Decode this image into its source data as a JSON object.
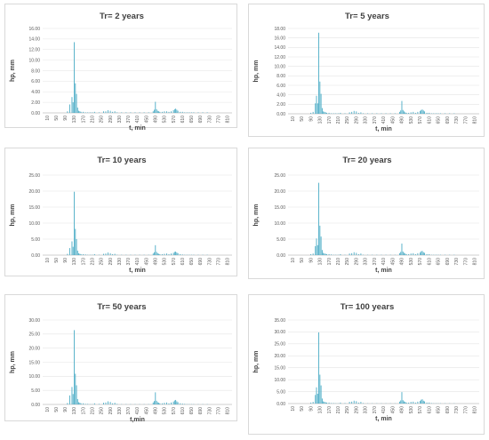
{
  "colors": {
    "bar": "#4bacc6",
    "grid": "#e4e4e4",
    "text": "#595959",
    "title": "#404040"
  },
  "chart_data": [
    {
      "type": "bar",
      "title": "Tr= 2 years",
      "xlabel": "t, min",
      "ylabel": "hp, mm",
      "ylim": [
        0,
        16
      ],
      "ytick_labels": [
        "0.00",
        "2.00",
        "4.00",
        "6.00",
        "8.00",
        "10.00",
        "12.00",
        "14.00",
        "16.00"
      ],
      "xtick_labels": [
        "10",
        "50",
        "90",
        "130",
        "170",
        "210",
        "250",
        "290",
        "330",
        "370",
        "410",
        "450",
        "490",
        "530",
        "570",
        "610",
        "650",
        "690",
        "730",
        "770",
        "810"
      ],
      "x": [
        100,
        110,
        120,
        125,
        130,
        135,
        140,
        145,
        150,
        155,
        160,
        170,
        180,
        190,
        200,
        210,
        220,
        240,
        260,
        270,
        280,
        290,
        300,
        310,
        320,
        340,
        360,
        380,
        400,
        420,
        440,
        460,
        480,
        485,
        490,
        495,
        500,
        505,
        510,
        520,
        530,
        540,
        550,
        560,
        570,
        575,
        580,
        585,
        590,
        600,
        610,
        620,
        630,
        640,
        650,
        660,
        680,
        700,
        720
      ],
      "values": [
        0.3,
        1.6,
        3.0,
        2.0,
        13.4,
        5.6,
        3.6,
        1.0,
        0.4,
        0.3,
        0.2,
        0.2,
        0.1,
        0.1,
        0.1,
        0.1,
        0.2,
        0.1,
        0.3,
        0.3,
        0.5,
        0.4,
        0.2,
        0.3,
        0.1,
        0.1,
        0.1,
        0.1,
        0.1,
        0.1,
        0.1,
        0.1,
        0.3,
        0.6,
        2.1,
        0.7,
        0.4,
        0.3,
        0.2,
        0.2,
        0.3,
        0.3,
        0.2,
        0.3,
        0.5,
        0.7,
        0.8,
        0.6,
        0.4,
        0.2,
        0.2,
        0.1,
        0.1,
        0.1,
        0.1,
        0.1,
        0.1,
        0.1,
        0.1
      ]
    },
    {
      "type": "bar",
      "title": "Tr= 5 years",
      "xlabel": "t, min",
      "ylabel": "hp, mm",
      "ylim": [
        0,
        18
      ],
      "ytick_labels": [
        "0.00",
        "2.00",
        "4.00",
        "6.00",
        "8.00",
        "10.00",
        "12.00",
        "14.00",
        "16.00",
        "18.00"
      ],
      "xtick_labels": [
        "10",
        "50",
        "90",
        "130",
        "170",
        "210",
        "250",
        "290",
        "330",
        "370",
        "410",
        "450",
        "490",
        "530",
        "570",
        "610",
        "650",
        "690",
        "730",
        "770",
        "810"
      ],
      "x": [
        90,
        100,
        110,
        115,
        120,
        125,
        130,
        135,
        140,
        145,
        150,
        155,
        160,
        170,
        180,
        190,
        200,
        210,
        220,
        240,
        260,
        270,
        280,
        290,
        300,
        310,
        320,
        340,
        360,
        380,
        400,
        420,
        440,
        460,
        480,
        485,
        490,
        495,
        500,
        505,
        510,
        520,
        530,
        540,
        550,
        560,
        570,
        575,
        580,
        585,
        590,
        600,
        610,
        620,
        630,
        640,
        650,
        660,
        680,
        700,
        720
      ],
      "values": [
        0.2,
        0.4,
        2.2,
        3.8,
        2.2,
        17.1,
        6.8,
        4.2,
        1.2,
        0.5,
        0.4,
        0.3,
        0.2,
        0.2,
        0.1,
        0.1,
        0.1,
        0.1,
        0.2,
        0.1,
        0.3,
        0.4,
        0.6,
        0.5,
        0.2,
        0.3,
        0.1,
        0.1,
        0.1,
        0.1,
        0.1,
        0.1,
        0.1,
        0.1,
        0.4,
        0.7,
        2.7,
        0.8,
        0.5,
        0.3,
        0.2,
        0.2,
        0.3,
        0.4,
        0.2,
        0.4,
        0.6,
        0.8,
        0.9,
        0.7,
        0.5,
        0.2,
        0.2,
        0.1,
        0.1,
        0.1,
        0.1,
        0.1,
        0.1,
        0.1,
        0.1
      ]
    },
    {
      "type": "bar",
      "title": "Tr= 10 years",
      "xlabel": "t, min",
      "ylabel": "hp, mm",
      "ylim": [
        0,
        25
      ],
      "ytick_labels": [
        "0.00",
        "5.00",
        "10.00",
        "15.00",
        "20.00",
        "25.00"
      ],
      "xtick_labels": [
        "10",
        "50",
        "90",
        "130",
        "170",
        "210",
        "250",
        "290",
        "330",
        "370",
        "410",
        "450",
        "490",
        "530",
        "570",
        "610",
        "650",
        "690",
        "730",
        "770",
        "810"
      ],
      "x": [
        100,
        110,
        120,
        125,
        130,
        135,
        140,
        145,
        150,
        155,
        160,
        170,
        180,
        190,
        200,
        210,
        220,
        240,
        260,
        270,
        280,
        290,
        300,
        310,
        320,
        340,
        360,
        380,
        400,
        420,
        440,
        460,
        480,
        485,
        490,
        495,
        500,
        505,
        510,
        520,
        530,
        540,
        550,
        560,
        570,
        575,
        580,
        585,
        590,
        600,
        610,
        620,
        630,
        640,
        650,
        660,
        680,
        700,
        720
      ],
      "values": [
        0.4,
        2.2,
        4.3,
        2.6,
        19.8,
        8.2,
        5.0,
        1.4,
        0.6,
        0.4,
        0.3,
        0.3,
        0.2,
        0.1,
        0.1,
        0.1,
        0.3,
        0.1,
        0.4,
        0.5,
        0.8,
        0.6,
        0.3,
        0.4,
        0.1,
        0.1,
        0.1,
        0.1,
        0.1,
        0.1,
        0.1,
        0.1,
        0.5,
        0.9,
        3.1,
        1.0,
        0.6,
        0.4,
        0.3,
        0.3,
        0.4,
        0.5,
        0.3,
        0.5,
        0.7,
        1.0,
        1.1,
        0.8,
        0.6,
        0.3,
        0.2,
        0.1,
        0.1,
        0.1,
        0.1,
        0.1,
        0.1,
        0.1,
        0.1
      ]
    },
    {
      "type": "bar",
      "title": "Tr= 20 years",
      "xlabel": "t, min",
      "ylabel": "hp, mm",
      "ylim": [
        0,
        25
      ],
      "ytick_labels": [
        "0.00",
        "5.00",
        "10.00",
        "15.00",
        "20.00",
        "25.00"
      ],
      "xtick_labels": [
        "10",
        "50",
        "90",
        "130",
        "170",
        "210",
        "250",
        "290",
        "330",
        "370",
        "410",
        "450",
        "490",
        "530",
        "570",
        "610",
        "650",
        "690",
        "730",
        "770",
        "810"
      ],
      "x": [
        90,
        100,
        110,
        115,
        120,
        125,
        130,
        135,
        140,
        145,
        150,
        155,
        160,
        170,
        180,
        190,
        200,
        210,
        220,
        240,
        260,
        270,
        280,
        290,
        300,
        310,
        320,
        340,
        360,
        380,
        400,
        420,
        440,
        460,
        480,
        485,
        490,
        495,
        500,
        505,
        510,
        520,
        530,
        540,
        550,
        560,
        570,
        575,
        580,
        585,
        590,
        600,
        610,
        620,
        630,
        640,
        650,
        660,
        680,
        700,
        720
      ],
      "values": [
        0.3,
        0.5,
        2.8,
        5.2,
        3.1,
        22.6,
        9.2,
        5.8,
        1.6,
        0.7,
        0.5,
        0.4,
        0.3,
        0.3,
        0.2,
        0.1,
        0.1,
        0.1,
        0.3,
        0.1,
        0.5,
        0.6,
        0.9,
        0.7,
        0.3,
        0.5,
        0.1,
        0.1,
        0.1,
        0.1,
        0.1,
        0.1,
        0.1,
        0.1,
        0.6,
        1.0,
        3.6,
        1.1,
        0.7,
        0.5,
        0.3,
        0.3,
        0.5,
        0.6,
        0.3,
        0.6,
        0.8,
        1.2,
        1.3,
        0.9,
        0.7,
        0.3,
        0.3,
        0.1,
        0.1,
        0.1,
        0.1,
        0.1,
        0.1,
        0.1,
        0.1
      ]
    },
    {
      "type": "bar",
      "title": "Tr= 50  years",
      "xlabel": "t,min",
      "ylabel": "hp, mm",
      "ylim": [
        0,
        30
      ],
      "ytick_labels": [
        "0.00",
        "5.00",
        "10.00",
        "15.00",
        "20.00",
        "25.00",
        "30.00"
      ],
      "xtick_labels": [
        "10",
        "50",
        "90",
        "130",
        "170",
        "210",
        "250",
        "290",
        "330",
        "370",
        "410",
        "450",
        "490",
        "530",
        "570",
        "610",
        "650",
        "690",
        "730",
        "770",
        "810"
      ],
      "x": [
        100,
        110,
        120,
        125,
        130,
        135,
        140,
        145,
        150,
        155,
        160,
        170,
        180,
        190,
        200,
        210,
        220,
        240,
        260,
        270,
        280,
        290,
        300,
        310,
        320,
        340,
        360,
        380,
        400,
        420,
        440,
        460,
        480,
        485,
        490,
        495,
        500,
        505,
        510,
        520,
        530,
        540,
        550,
        560,
        570,
        575,
        580,
        585,
        590,
        600,
        610,
        620,
        630,
        640,
        650,
        660,
        680,
        700,
        720
      ],
      "values": [
        0.5,
        3.2,
        6.2,
        3.7,
        26.4,
        10.9,
        6.8,
        1.9,
        0.8,
        0.6,
        0.4,
        0.4,
        0.2,
        0.2,
        0.1,
        0.1,
        0.4,
        0.2,
        0.6,
        0.7,
        1.1,
        0.9,
        0.4,
        0.6,
        0.2,
        0.1,
        0.1,
        0.1,
        0.1,
        0.1,
        0.1,
        0.1,
        0.7,
        1.2,
        4.3,
        1.3,
        0.8,
        0.6,
        0.4,
        0.4,
        0.6,
        0.7,
        0.4,
        0.7,
        1.0,
        1.4,
        1.6,
        1.1,
        0.8,
        0.4,
        0.3,
        0.2,
        0.1,
        0.1,
        0.1,
        0.1,
        0.1,
        0.1,
        0.1
      ]
    },
    {
      "type": "bar",
      "title": "Tr= 100 years",
      "xlabel": "t, min",
      "ylabel": "hp, mm",
      "ylim": [
        0,
        35
      ],
      "ytick_labels": [
        "0.00",
        "5.00",
        "10.00",
        "15.00",
        "20.00",
        "25.00",
        "30.00",
        "35.00"
      ],
      "xtick_labels": [
        "10",
        "50",
        "90",
        "130",
        "170",
        "210",
        "250",
        "290",
        "330",
        "370",
        "410",
        "450",
        "490",
        "530",
        "570",
        "610",
        "650",
        "690",
        "730",
        "770",
        "810"
      ],
      "x": [
        90,
        100,
        110,
        115,
        120,
        125,
        130,
        135,
        140,
        145,
        150,
        155,
        160,
        170,
        180,
        190,
        200,
        210,
        220,
        240,
        260,
        270,
        280,
        290,
        300,
        310,
        320,
        340,
        360,
        380,
        400,
        420,
        440,
        460,
        480,
        485,
        490,
        495,
        500,
        505,
        510,
        520,
        530,
        540,
        550,
        560,
        570,
        575,
        580,
        585,
        590,
        600,
        610,
        620,
        630,
        640,
        650,
        660,
        680,
        700,
        720
      ],
      "values": [
        0.4,
        0.7,
        3.6,
        6.8,
        4.1,
        29.8,
        12.1,
        7.6,
        2.1,
        0.9,
        0.7,
        0.5,
        0.4,
        0.4,
        0.2,
        0.2,
        0.1,
        0.1,
        0.4,
        0.2,
        0.7,
        0.8,
        1.2,
        1.0,
        0.4,
        0.7,
        0.2,
        0.1,
        0.1,
        0.1,
        0.1,
        0.1,
        0.1,
        0.1,
        0.8,
        1.3,
        4.8,
        1.4,
        0.9,
        0.7,
        0.4,
        0.4,
        0.7,
        0.8,
        0.4,
        0.8,
        1.1,
        1.6,
        1.8,
        1.2,
        0.9,
        0.4,
        0.4,
        0.2,
        0.1,
        0.1,
        0.1,
        0.1,
        0.1,
        0.1,
        0.1
      ]
    }
  ]
}
